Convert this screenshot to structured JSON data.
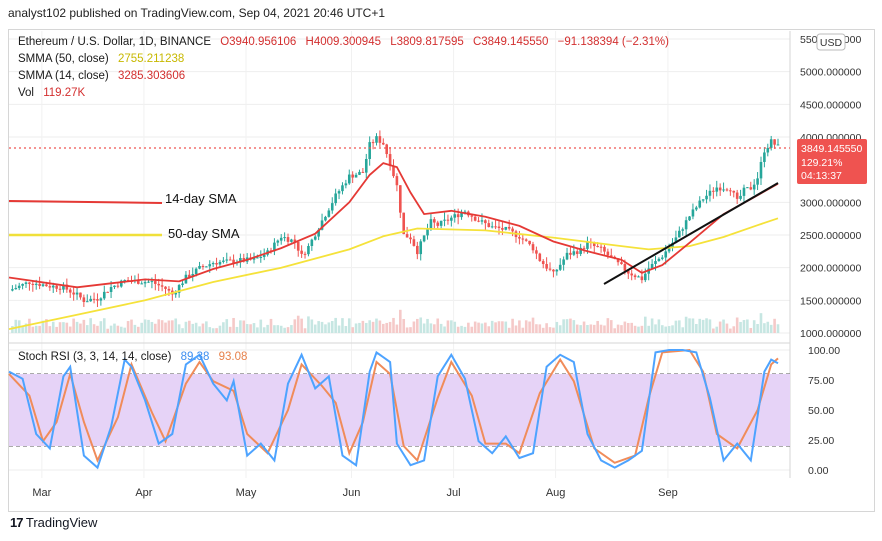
{
  "header": {
    "publisher": "analyst102 published on TradingView.com, Sep 04, 2021 20:46 UTC+1"
  },
  "legend": {
    "symbol": "Ethereum / U.S. Dollar, 1D, BINANCE",
    "open": "O3940.956106",
    "high": "H4009.300945",
    "low": "L3809.817595",
    "close": "C3849.145550",
    "change": "−91.138394 (−2.31%)",
    "sma50_label": "SMMA (50, close)",
    "sma50_value": "2755.211238",
    "sma14_label": "SMMA (14, close)",
    "sma14_value": "3285.303606",
    "vol_label": "Vol",
    "vol_value": "119.27K"
  },
  "stoch": {
    "label": "Stoch RSI (3, 3, 14, 14, close)",
    "k_value": "89.38",
    "d_value": "93.08"
  },
  "price_badge": {
    "price": "3849.145550",
    "pct": "129.21%",
    "timer": "04:13:37"
  },
  "currency": "USD",
  "annotations": {
    "sma14": "14-day SMA",
    "sma50": "50-day SMA"
  },
  "footer": {
    "brand": "TradingView"
  },
  "colors": {
    "up": "#26a69a",
    "down": "#ef5350",
    "sma14": "#e53935",
    "sma50": "#f5e23a",
    "stoch_k": "#4da3ff",
    "stoch_d": "#f08c5a",
    "stoch_band": "#e6d3f7"
  },
  "chart_data": {
    "type": "candlestick",
    "x_ticks": [
      "Mar",
      "Apr",
      "May",
      "Jun",
      "Jul",
      "Aug",
      "Sep"
    ],
    "y_ticks": [
      "5500.000000",
      "5000.000000",
      "4500.000000",
      "4000.000000",
      "3000.000000",
      "2500.000000",
      "2000.000000",
      "1500.000000",
      "1000.000000"
    ],
    "y_ticks_stoch": [
      "100.00",
      "75.00",
      "50.00",
      "25.00",
      "0.00"
    ],
    "price_axis": {
      "min": 1000,
      "max": 5500
    },
    "stoch_axis": {
      "min": 0,
      "max": 100,
      "bands": [
        20,
        80
      ]
    },
    "close_path": [
      [
        0,
        1650
      ],
      [
        6,
        1780
      ],
      [
        12,
        1720
      ],
      [
        16,
        1700
      ],
      [
        20,
        1580
      ],
      [
        22,
        1500
      ],
      [
        26,
        1530
      ],
      [
        30,
        1700
      ],
      [
        34,
        1800
      ],
      [
        38,
        1790
      ],
      [
        42,
        1780
      ],
      [
        46,
        1680
      ],
      [
        48,
        1590
      ],
      [
        52,
        1850
      ],
      [
        56,
        1990
      ],
      [
        60,
        2080
      ],
      [
        64,
        2090
      ],
      [
        68,
        2110
      ],
      [
        72,
        2120
      ],
      [
        76,
        2230
      ],
      [
        80,
        2480
      ],
      [
        84,
        2400
      ],
      [
        86,
        2180
      ],
      [
        88,
        2320
      ],
      [
        92,
        2720
      ],
      [
        96,
        3100
      ],
      [
        100,
        3400
      ],
      [
        104,
        3460
      ],
      [
        106,
        3880
      ],
      [
        108,
        3980
      ],
      [
        110,
        3900
      ],
      [
        112,
        3600
      ],
      [
        114,
        3250
      ],
      [
        116,
        2500
      ],
      [
        118,
        2460
      ],
      [
        120,
        2250
      ],
      [
        124,
        2700
      ],
      [
        126,
        2650
      ],
      [
        130,
        2760
      ],
      [
        134,
        2870
      ],
      [
        138,
        2720
      ],
      [
        142,
        2620
      ],
      [
        146,
        2580
      ],
      [
        150,
        2480
      ],
      [
        154,
        2300
      ],
      [
        156,
        2120
      ],
      [
        160,
        1900
      ],
      [
        164,
        2200
      ],
      [
        168,
        2270
      ],
      [
        170,
        2370
      ],
      [
        174,
        2280
      ],
      [
        178,
        2100
      ],
      [
        182,
        1930
      ],
      [
        186,
        1830
      ],
      [
        188,
        1990
      ],
      [
        192,
        2180
      ],
      [
        196,
        2450
      ],
      [
        200,
        2790
      ],
      [
        204,
        3060
      ],
      [
        208,
        3230
      ],
      [
        212,
        3220
      ],
      [
        214,
        3010
      ],
      [
        216,
        3180
      ],
      [
        218,
        3220
      ],
      [
        220,
        3380
      ],
      [
        222,
        3800
      ],
      [
        224,
        3930
      ],
      [
        226,
        3849
      ]
    ],
    "sma14_path": [
      [
        0,
        1850
      ],
      [
        20,
        1700
      ],
      [
        30,
        1760
      ],
      [
        40,
        1820
      ],
      [
        50,
        1790
      ],
      [
        60,
        1980
      ],
      [
        70,
        2120
      ],
      [
        80,
        2300
      ],
      [
        90,
        2520
      ],
      [
        100,
        3000
      ],
      [
        106,
        3420
      ],
      [
        110,
        3600
      ],
      [
        114,
        3540
      ],
      [
        118,
        3150
      ],
      [
        122,
        2820
      ],
      [
        130,
        2870
      ],
      [
        140,
        2780
      ],
      [
        150,
        2640
      ],
      [
        160,
        2400
      ],
      [
        170,
        2250
      ],
      [
        180,
        2120
      ],
      [
        186,
        1920
      ],
      [
        192,
        2040
      ],
      [
        200,
        2380
      ],
      [
        210,
        2820
      ],
      [
        218,
        3050
      ],
      [
        226,
        3285
      ]
    ],
    "sma50_path": [
      [
        0,
        1060
      ],
      [
        20,
        1280
      ],
      [
        40,
        1500
      ],
      [
        60,
        1780
      ],
      [
        80,
        2000
      ],
      [
        100,
        2280
      ],
      [
        110,
        2480
      ],
      [
        120,
        2600
      ],
      [
        140,
        2570
      ],
      [
        160,
        2460
      ],
      [
        180,
        2330
      ],
      [
        188,
        2280
      ],
      [
        200,
        2330
      ],
      [
        210,
        2470
      ],
      [
        220,
        2650
      ],
      [
        226,
        2755
      ]
    ],
    "stoch_k_path": [
      [
        0,
        82
      ],
      [
        4,
        76
      ],
      [
        8,
        30
      ],
      [
        12,
        18
      ],
      [
        16,
        78
      ],
      [
        18,
        86
      ],
      [
        22,
        12
      ],
      [
        26,
        2
      ],
      [
        30,
        36
      ],
      [
        34,
        92
      ],
      [
        36,
        86
      ],
      [
        40,
        58
      ],
      [
        44,
        22
      ],
      [
        48,
        30
      ],
      [
        52,
        88
      ],
      [
        56,
        96
      ],
      [
        60,
        72
      ],
      [
        64,
        58
      ],
      [
        66,
        74
      ],
      [
        70,
        12
      ],
      [
        74,
        22
      ],
      [
        78,
        8
      ],
      [
        82,
        72
      ],
      [
        86,
        96
      ],
      [
        90,
        68
      ],
      [
        94,
        78
      ],
      [
        98,
        12
      ],
      [
        102,
        4
      ],
      [
        106,
        82
      ],
      [
        108,
        98
      ],
      [
        112,
        90
      ],
      [
        114,
        22
      ],
      [
        118,
        4
      ],
      [
        122,
        8
      ],
      [
        126,
        78
      ],
      [
        130,
        96
      ],
      [
        134,
        76
      ],
      [
        138,
        24
      ],
      [
        142,
        14
      ],
      [
        146,
        28
      ],
      [
        150,
        10
      ],
      [
        154,
        14
      ],
      [
        158,
        86
      ],
      [
        162,
        96
      ],
      [
        166,
        90
      ],
      [
        170,
        30
      ],
      [
        174,
        8
      ],
      [
        178,
        2
      ],
      [
        182,
        8
      ],
      [
        186,
        16
      ],
      [
        190,
        98
      ],
      [
        194,
        100
      ],
      [
        198,
        100
      ],
      [
        202,
        98
      ],
      [
        206,
        60
      ],
      [
        210,
        8
      ],
      [
        214,
        22
      ],
      [
        218,
        8
      ],
      [
        222,
        82
      ],
      [
        224,
        92
      ],
      [
        226,
        89
      ]
    ],
    "stoch_d_path": [
      [
        0,
        80
      ],
      [
        6,
        62
      ],
      [
        10,
        24
      ],
      [
        14,
        40
      ],
      [
        18,
        80
      ],
      [
        22,
        40
      ],
      [
        26,
        8
      ],
      [
        32,
        44
      ],
      [
        36,
        88
      ],
      [
        42,
        48
      ],
      [
        46,
        24
      ],
      [
        52,
        72
      ],
      [
        56,
        90
      ],
      [
        60,
        74
      ],
      [
        66,
        66
      ],
      [
        70,
        30
      ],
      [
        76,
        14
      ],
      [
        82,
        50
      ],
      [
        86,
        88
      ],
      [
        92,
        70
      ],
      [
        96,
        56
      ],
      [
        100,
        14
      ],
      [
        104,
        40
      ],
      [
        108,
        90
      ],
      [
        112,
        80
      ],
      [
        116,
        20
      ],
      [
        120,
        8
      ],
      [
        126,
        60
      ],
      [
        130,
        90
      ],
      [
        136,
        62
      ],
      [
        140,
        22
      ],
      [
        146,
        22
      ],
      [
        150,
        14
      ],
      [
        156,
        64
      ],
      [
        162,
        92
      ],
      [
        166,
        74
      ],
      [
        172,
        18
      ],
      [
        178,
        6
      ],
      [
        184,
        12
      ],
      [
        188,
        60
      ],
      [
        192,
        98
      ],
      [
        200,
        100
      ],
      [
        204,
        82
      ],
      [
        208,
        30
      ],
      [
        214,
        18
      ],
      [
        220,
        50
      ],
      [
        224,
        88
      ],
      [
        226,
        93
      ]
    ]
  }
}
